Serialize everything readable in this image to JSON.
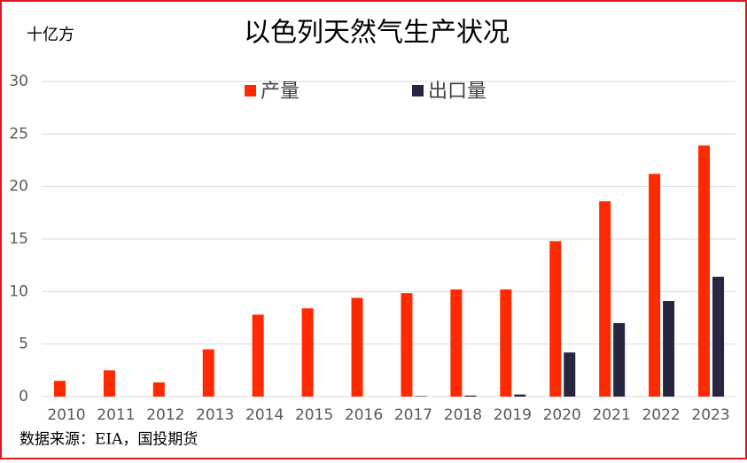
{
  "chart_data": {
    "type": "bar",
    "title": "以色列天然气生产状况",
    "unit_label": "十亿方",
    "source": "数据来源：EIA，国投期货",
    "categories": [
      "2010",
      "2011",
      "2012",
      "2013",
      "2014",
      "2015",
      "2016",
      "2017",
      "2018",
      "2019",
      "2020",
      "2021",
      "2022",
      "2023"
    ],
    "series": [
      {
        "name": "产量",
        "color": "#ff2a00",
        "values": [
          1.5,
          2.5,
          1.35,
          4.5,
          7.8,
          8.4,
          9.4,
          9.85,
          10.2,
          10.2,
          14.8,
          18.6,
          21.2,
          23.9
        ]
      },
      {
        "name": "出口量",
        "color": "#262640",
        "values": [
          0,
          0,
          0,
          0,
          0,
          0,
          0,
          0.05,
          0.1,
          0.2,
          4.2,
          7.0,
          9.1,
          11.4
        ]
      }
    ],
    "ylim": [
      0,
      30
    ],
    "yticks": [
      0,
      5,
      10,
      15,
      20,
      25,
      30
    ],
    "grid": true,
    "legend": "top"
  }
}
